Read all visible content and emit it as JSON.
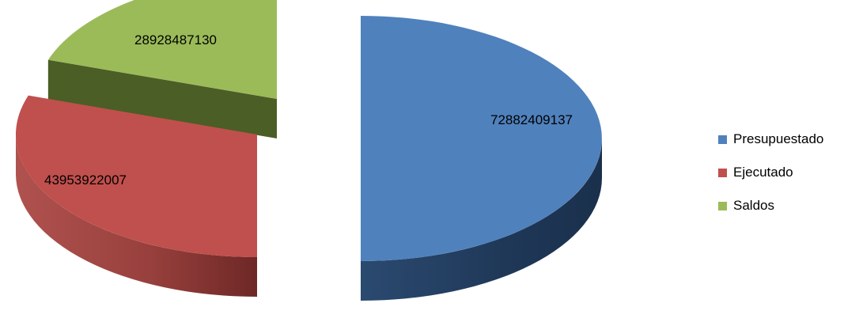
{
  "chart_data": {
    "type": "pie",
    "style": "3d-exploded",
    "categories": [
      "Presupuestado",
      "Ejecutado",
      "Saldos"
    ],
    "values": [
      72882409137,
      43953922007,
      28928487130
    ],
    "value_labels": [
      "72882409137",
      "43953922007",
      "28928487130"
    ],
    "colors": [
      "#4F81BD",
      "#C0504D",
      "#9BBB59"
    ],
    "side_colors": [
      "#243E5E",
      "#7A2E2C",
      "#4B5E25"
    ],
    "title": "",
    "legend_position": "right"
  },
  "legend": {
    "items": [
      {
        "label": "Presupuestado",
        "color": "#4F81BD"
      },
      {
        "label": "Ejecutado",
        "color": "#C0504D"
      },
      {
        "label": "Saldos",
        "color": "#9BBB59"
      }
    ]
  }
}
